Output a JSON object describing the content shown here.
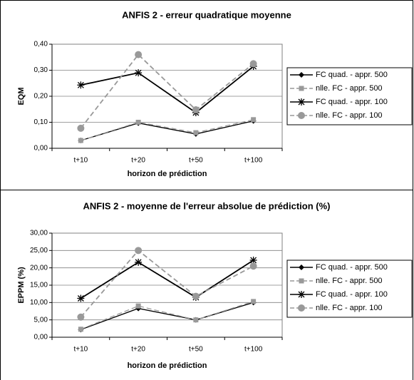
{
  "chart_data": [
    {
      "type": "line",
      "title": "ANFIS 2 - erreur quadratique moyenne",
      "x_label": "horizon de prédiction",
      "y_label": "EQM",
      "categories": [
        "t+10",
        "t+20",
        "t+50",
        "t+100"
      ],
      "ylim": [
        0,
        0.4
      ],
      "yticks": [
        {
          "value": 0,
          "label": "0,00"
        },
        {
          "value": 0.1,
          "label": "0,10"
        },
        {
          "value": 0.2,
          "label": "0,20"
        },
        {
          "value": 0.3,
          "label": "0,30"
        },
        {
          "value": 0.4,
          "label": "0,40"
        }
      ],
      "grid": true,
      "series": [
        {
          "name": "FC quad. - appr. 500",
          "color": "#000000",
          "marker": "diamond",
          "dashed": false,
          "values": [
            0.03,
            0.097,
            0.055,
            0.105
          ]
        },
        {
          "name": "nlle. FC - appr. 500",
          "color": "#999999",
          "marker": "square",
          "dashed": true,
          "values": [
            0.03,
            0.1,
            0.06,
            0.11
          ]
        },
        {
          "name": "FC quad. - appr. 100",
          "color": "#000000",
          "marker": "star",
          "dashed": false,
          "values": [
            0.243,
            0.29,
            0.137,
            0.315
          ]
        },
        {
          "name": "nlle. FC - appr. 100",
          "color": "#999999",
          "marker": "circle",
          "dashed": true,
          "values": [
            0.077,
            0.36,
            0.148,
            0.325
          ]
        }
      ]
    },
    {
      "type": "line",
      "title": "ANFIS 2 - moyenne de l'erreur absolue de prédiction (%)",
      "x_label": "horizon de prédiction",
      "y_label": "EPPM (%)",
      "categories": [
        "t+10",
        "t+20",
        "t+50",
        "t+100"
      ],
      "ylim": [
        0,
        30
      ],
      "yticks": [
        {
          "value": 0,
          "label": "0,00"
        },
        {
          "value": 5,
          "label": "5,00"
        },
        {
          "value": 10,
          "label": "10,00"
        },
        {
          "value": 15,
          "label": "15,00"
        },
        {
          "value": 20,
          "label": "20,00"
        },
        {
          "value": 25,
          "label": "25,00"
        },
        {
          "value": 30,
          "label": "30,00"
        }
      ],
      "grid": true,
      "series": [
        {
          "name": "FC quad. - appr. 500",
          "color": "#000000",
          "marker": "diamond",
          "dashed": false,
          "values": [
            2.2,
            8.3,
            5.0,
            10.0
          ]
        },
        {
          "name": "nlle. FC - appr. 500",
          "color": "#999999",
          "marker": "square",
          "dashed": true,
          "values": [
            2.3,
            9.0,
            5.0,
            10.3
          ]
        },
        {
          "name": "FC quad. - appr. 100",
          "color": "#000000",
          "marker": "star",
          "dashed": false,
          "values": [
            11.2,
            21.6,
            11.5,
            22.2
          ]
        },
        {
          "name": "nlle. FC - appr. 100",
          "color": "#999999",
          "marker": "circle",
          "dashed": true,
          "values": [
            5.8,
            25.0,
            11.8,
            20.5
          ]
        }
      ]
    }
  ]
}
